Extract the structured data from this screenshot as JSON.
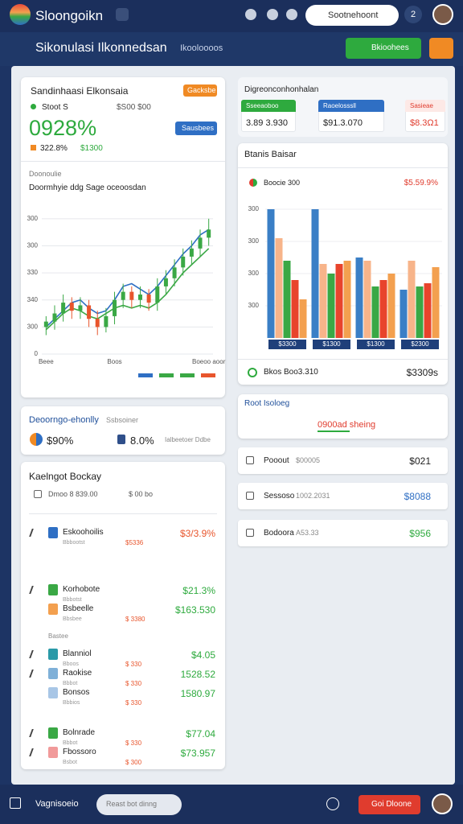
{
  "header": {
    "brand": "Sloongoikn",
    "search": "Sootnehoont",
    "badge": "2"
  },
  "subheader": {
    "title": "Sikonulasi Ilkonnedsan",
    "tab": "Ikooloooos",
    "button": "Bkioohees"
  },
  "summary": {
    "title": "Sandinhaasi Elkonsaia",
    "badge": "Gacksbe",
    "stat_label": "Stoot S",
    "stat_value": "$S00 $00",
    "big_value": "0928%",
    "button": "Sausbees",
    "change": "322.8%",
    "change_value": "$1300",
    "section": "Doonoulie"
  },
  "chart_data": [
    {
      "type": "candlestick",
      "title": "Doormhyie ddg Sage oceoosdan",
      "categories": [
        "Beee",
        null,
        null,
        null,
        null,
        null,
        null,
        null,
        "Boos",
        null,
        null,
        null,
        null,
        null,
        null,
        null,
        null,
        null,
        null,
        "Boeoo aoor"
      ],
      "open": [
        1.0,
        1.2,
        1.5,
        1.9,
        1.6,
        1.8,
        1.3,
        1.0,
        1.4,
        2.0,
        2.3,
        2.0,
        2.2,
        1.9,
        2.5,
        2.8,
        3.2,
        3.6,
        3.9,
        4.3
      ],
      "close": [
        1.2,
        1.5,
        1.9,
        1.6,
        1.8,
        1.3,
        1.0,
        1.4,
        2.0,
        2.3,
        2.0,
        2.2,
        1.9,
        2.5,
        2.8,
        3.2,
        3.6,
        3.9,
        4.3,
        4.6
      ],
      "high": [
        1.4,
        1.8,
        2.2,
        2.1,
        2.1,
        2.0,
        1.6,
        1.7,
        2.3,
        2.6,
        2.5,
        2.5,
        2.4,
        2.8,
        3.1,
        3.5,
        3.9,
        4.2,
        4.6,
        5.0
      ],
      "low": [
        0.7,
        0.9,
        1.2,
        1.3,
        1.3,
        1.0,
        0.7,
        0.8,
        1.1,
        1.7,
        1.7,
        1.7,
        1.6,
        1.6,
        2.2,
        2.5,
        2.9,
        3.3,
        3.6,
        4.0
      ],
      "up_color": "#3aa845",
      "down_color": "#e8552c",
      "series": [
        {
          "color": "#2f6fc4",
          "values": [
            1.0,
            1.3,
            1.6,
            1.9,
            2.0,
            1.7,
            1.5,
            1.6,
            2.0,
            2.5,
            2.6,
            2.4,
            2.2,
            2.5,
            2.9,
            3.3,
            3.7,
            4.0,
            4.4,
            4.6
          ]
        },
        {
          "color": "#3aa845",
          "values": [
            0.9,
            1.2,
            1.5,
            1.7,
            1.6,
            1.4,
            1.3,
            1.5,
            1.7,
            1.8,
            1.7,
            1.8,
            1.7,
            1.9,
            2.2,
            2.6,
            3.0,
            3.3,
            3.6,
            3.9
          ]
        }
      ],
      "ylim": [
        0,
        5.5
      ],
      "yticks": [
        {
          "value": 0,
          "label": "0"
        },
        {
          "value": 1,
          "label": "300"
        },
        {
          "value": 2,
          "label": "340"
        },
        {
          "value": 3,
          "label": "330"
        },
        {
          "value": 4,
          "label": "300"
        },
        {
          "value": 5,
          "label": "300"
        }
      ],
      "grid": true
    },
    {
      "type": "bar",
      "title": "Btanis Baisar",
      "categories": [
        "$3300",
        "$1300",
        "$1300",
        "$2300"
      ],
      "series": [
        {
          "color": "#3a7fc6",
          "values": [
            4.0,
            4.0,
            2.5,
            1.5
          ]
        },
        {
          "color": "#f7b48a",
          "values": [
            3.1,
            2.3,
            2.4,
            2.4
          ]
        },
        {
          "color": "#3aa845",
          "values": [
            2.4,
            2.0,
            1.6,
            1.6
          ]
        },
        {
          "color": "#e8442c",
          "values": [
            1.8,
            2.3,
            1.8,
            1.7
          ]
        },
        {
          "color": "#f3a04f",
          "values": [
            1.2,
            2.4,
            2.0,
            2.2
          ]
        }
      ],
      "ylim": [
        0,
        4.5
      ],
      "yticks": [
        {
          "value": 1,
          "label": "300"
        },
        {
          "value": 2,
          "label": "300"
        },
        {
          "value": 3,
          "label": "300"
        },
        {
          "value": 4,
          "label": "300"
        }
      ],
      "grid": true
    }
  ],
  "overview": {
    "title": "Digreonconhonhalan",
    "cards": [
      {
        "label": "Sseeaoboo",
        "value": "3.89  3.930"
      },
      {
        "label": "Raoelosssll",
        "value": "$91.3.070"
      },
      {
        "label": "Sasieae",
        "value": "$8.3Ω1"
      }
    ]
  },
  "bar_card": {
    "legend_label": "Boocie 300",
    "legend_value": "$5.59.9%",
    "footer_label": "Bkos Boo3.310",
    "footer_value": "$3309s"
  },
  "ratio": {
    "title": "Deoorngo-ehonlly",
    "subtitle": "Ssbsoiner",
    "value1": "$90%",
    "value2": "8.0%",
    "note": "Ialbeetoer Ddbe"
  },
  "report": {
    "title": "Root Isoloeg",
    "subtitle": "0900ad sheing",
    "rows": [
      {
        "label": "Pooout",
        "detail": "$00005",
        "value": "$021"
      },
      {
        "label": "Sessoso",
        "detail": "1002.2031",
        "value": "$8088"
      },
      {
        "label": "Bodoora",
        "detail": "A53.33",
        "value": "$956"
      }
    ]
  },
  "holdings": {
    "title": "Kaelngot Bockay",
    "filter": "Dmoo 8 839.00",
    "filter2": "$ 00 bo",
    "group": "Bastee",
    "items": [
      {
        "name": "Eskoohoilis",
        "sub": "Bbbootst",
        "tag": "$5336",
        "value": "$3/3.9%"
      },
      {
        "name": "Korhobote",
        "sub": "Bbbotst",
        "tag": "",
        "value": "$21.3%"
      },
      {
        "name": "Bsbeelle",
        "sub": "Bbsbee",
        "tag": "$ 3380",
        "value": "$163.530"
      },
      {
        "name": "Blanniol",
        "sub": "Bboos",
        "tag": "$ 330",
        "value": "$4.05"
      },
      {
        "name": "Raokise",
        "sub": "Bbbot",
        "tag": "$ 330",
        "value": "1528.52"
      },
      {
        "name": "Bonsos",
        "sub": "Bbbios",
        "tag": "$ 330",
        "value": "1580.97"
      },
      {
        "name": "Bolnrade",
        "sub": "Bbbot",
        "tag": "$ 330",
        "value": "$77.04"
      },
      {
        "name": "Fbossoro",
        "sub": "Bsbot",
        "tag": "$ 300",
        "value": "$73.957"
      }
    ]
  },
  "footer": {
    "title": "Vagnisoeio",
    "search": "Reast bot dinng",
    "button": "Goi Dloone"
  }
}
